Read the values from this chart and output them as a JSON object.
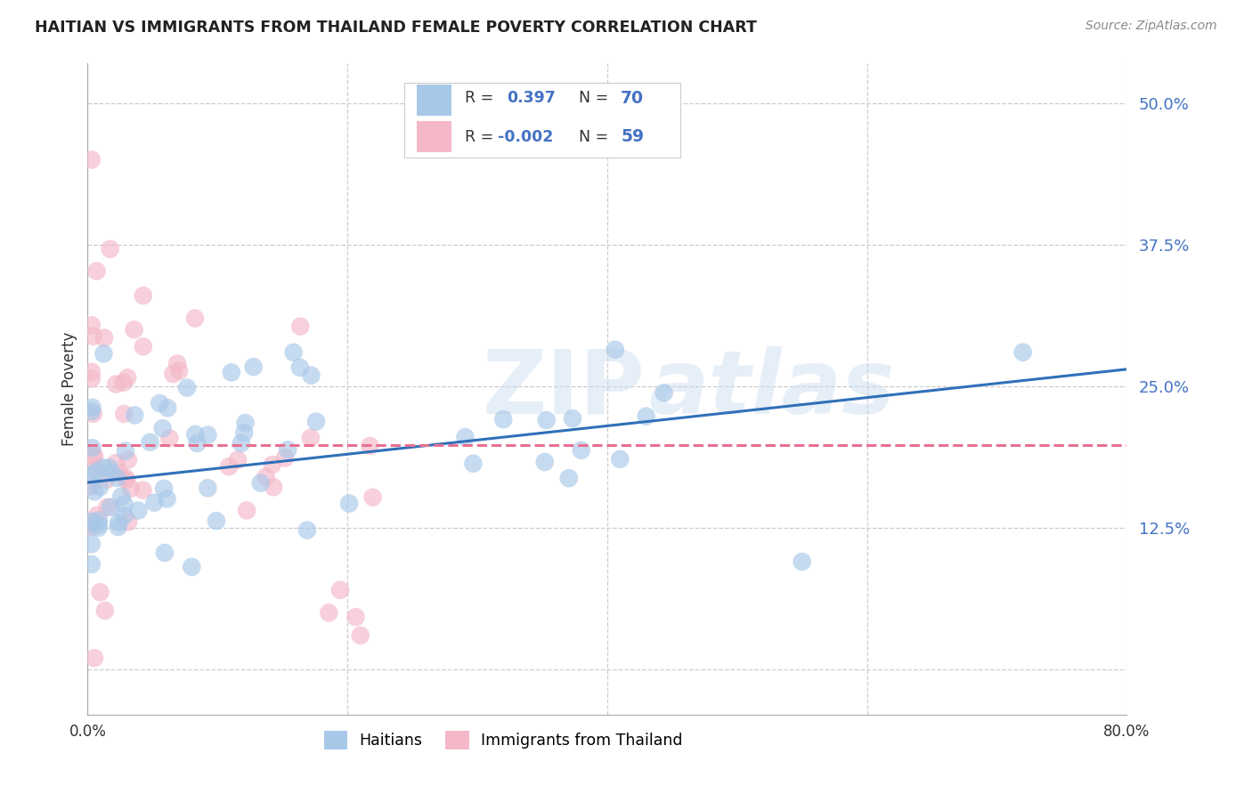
{
  "title": "HAITIAN VS IMMIGRANTS FROM THAILAND FEMALE POVERTY CORRELATION CHART",
  "source": "Source: ZipAtlas.com",
  "ylabel": "Female Poverty",
  "yticks": [
    0.0,
    0.125,
    0.25,
    0.375,
    0.5
  ],
  "ytick_labels": [
    "",
    "12.5%",
    "25.0%",
    "37.5%",
    "50.0%"
  ],
  "xlim": [
    0.0,
    0.8
  ],
  "ylim": [
    -0.04,
    0.535
  ],
  "legend_blue_r": "0.397",
  "legend_blue_n": "70",
  "legend_pink_r": "-0.002",
  "legend_pink_n": "59",
  "blue_color": "#a8c8e8",
  "pink_color": "#f4b8c8",
  "blue_line_color": "#3070b8",
  "pink_line_color": "#e87090",
  "blue_line_x0": 0.0,
  "blue_line_y0": 0.165,
  "blue_line_x1": 0.8,
  "blue_line_y1": 0.265,
  "pink_line_x0": 0.0,
  "pink_line_y0": 0.198,
  "pink_line_x1": 0.8,
  "pink_line_y1": 0.198
}
